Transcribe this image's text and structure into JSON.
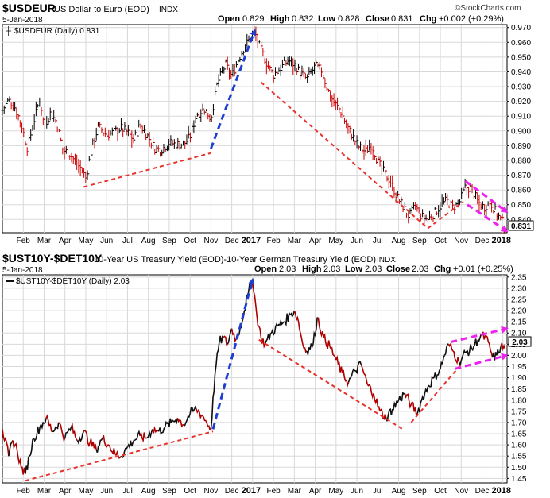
{
  "brand": "©StockCharts.com",
  "colors": {
    "price": "#000000",
    "price_down": "#cc0000",
    "line_dark": "#111111",
    "line_red": "#b00000",
    "trend_red": "#e8322b",
    "trend_blue": "#1f3fd0",
    "trend_magenta": "#ee22ee",
    "grid": "#d8d8d8"
  },
  "panels": [
    {
      "symbol": "$USDEUR",
      "description": "US Dollar to Euro (EOD)",
      "exchange": "INDX",
      "date": "5-Jan-2018",
      "ohlc": {
        "open_label": "Open",
        "open": "0.829",
        "high_label": "High",
        "high": "0.832",
        "low_label": "Low",
        "low": "0.828",
        "close_label": "Close",
        "close": "0.831",
        "chg_label": "Chg",
        "chg": "+0.002 (+0.29%)"
      },
      "legend": "$USDEUR (Daily) 0.831",
      "last_value_label": "0.831"
    },
    {
      "symbol": "$UST10Y-$DET10Y",
      "description": "10-Year US Treasury Yield (EOD)-10-Year German Treasury Yield (EOD)",
      "exchange": "INDX",
      "date": "5-Jan-2018",
      "ohlc": {
        "open_label": "Open",
        "open": "2.03",
        "high_label": "High",
        "high": "2.03",
        "low_label": "Low",
        "low": "2.03",
        "close_label": "Close",
        "close": "2.03",
        "chg_label": "Chg",
        "chg": "+0.01 (+0.25%)"
      },
      "legend": "$UST10Y-$DET10Y (Daily) 2.03",
      "last_value_label": "2.03"
    }
  ],
  "chart_data": [
    {
      "type": "bar",
      "title": "$USDEUR US Dollar to Euro (EOD) INDX",
      "x_ticks": [
        {
          "label": "Feb",
          "t": 1
        },
        {
          "label": "Mar",
          "t": 2
        },
        {
          "label": "Apr",
          "t": 3
        },
        {
          "label": "May",
          "t": 4
        },
        {
          "label": "Jun",
          "t": 5
        },
        {
          "label": "Jul",
          "t": 6
        },
        {
          "label": "Aug",
          "t": 7
        },
        {
          "label": "Sep",
          "t": 8
        },
        {
          "label": "Oct",
          "t": 9
        },
        {
          "label": "Nov",
          "t": 10
        },
        {
          "label": "Dec",
          "t": 11
        },
        {
          "label": "2017",
          "t": 12
        },
        {
          "label": "Feb",
          "t": 13
        },
        {
          "label": "Mar",
          "t": 14
        },
        {
          "label": "Apr",
          "t": 15
        },
        {
          "label": "May",
          "t": 16
        },
        {
          "label": "Jun",
          "t": 17
        },
        {
          "label": "Jul",
          "t": 18
        },
        {
          "label": "Aug",
          "t": 19
        },
        {
          "label": "Sep",
          "t": 20
        },
        {
          "label": "Oct",
          "t": 21
        },
        {
          "label": "Nov",
          "t": 22
        },
        {
          "label": "Dec",
          "t": 23
        },
        {
          "label": "2018",
          "t": 24
        }
      ],
      "y_ticks": [
        0.84,
        0.85,
        0.86,
        0.87,
        0.88,
        0.89,
        0.9,
        0.91,
        0.92,
        0.93,
        0.94,
        0.95,
        0.96,
        0.97
      ],
      "y_tick_labels": [
        "0.840",
        "0.850",
        "0.860",
        "0.870",
        "0.880",
        "0.890",
        "0.900",
        "0.910",
        "0.920",
        "0.930",
        "0.940",
        "0.950",
        "0.960",
        "0.970"
      ],
      "ylim": [
        0.831,
        0.972
      ],
      "xlim": [
        0,
        24.2
      ],
      "grid": true,
      "series_path": [
        [
          0.0,
          0.914
        ],
        [
          0.3,
          0.921
        ],
        [
          0.6,
          0.916
        ],
        [
          0.9,
          0.905
        ],
        [
          1.2,
          0.888
        ],
        [
          1.5,
          0.906
        ],
        [
          1.8,
          0.922
        ],
        [
          2.0,
          0.903
        ],
        [
          2.3,
          0.912
        ],
        [
          2.6,
          0.906
        ],
        [
          2.9,
          0.887
        ],
        [
          3.2,
          0.885
        ],
        [
          3.5,
          0.879
        ],
        [
          3.8,
          0.874
        ],
        [
          4.0,
          0.868
        ],
        [
          4.3,
          0.889
        ],
        [
          4.6,
          0.903
        ],
        [
          5.0,
          0.897
        ],
        [
          5.3,
          0.899
        ],
        [
          5.7,
          0.902
        ],
        [
          6.0,
          0.899
        ],
        [
          6.3,
          0.894
        ],
        [
          6.6,
          0.904
        ],
        [
          7.0,
          0.896
        ],
        [
          7.3,
          0.888
        ],
        [
          7.6,
          0.887
        ],
        [
          8.0,
          0.892
        ],
        [
          8.3,
          0.891
        ],
        [
          8.7,
          0.891
        ],
        [
          9.0,
          0.896
        ],
        [
          9.3,
          0.911
        ],
        [
          9.7,
          0.915
        ],
        [
          10.0,
          0.908
        ],
        [
          10.3,
          0.932
        ],
        [
          10.7,
          0.945
        ],
        [
          11.0,
          0.937
        ],
        [
          11.3,
          0.948
        ],
        [
          11.6,
          0.957
        ],
        [
          11.9,
          0.963
        ],
        [
          12.1,
          0.967
        ],
        [
          12.4,
          0.955
        ],
        [
          12.7,
          0.945
        ],
        [
          13.0,
          0.938
        ],
        [
          13.3,
          0.942
        ],
        [
          13.7,
          0.948
        ],
        [
          14.0,
          0.945
        ],
        [
          14.3,
          0.939
        ],
        [
          14.6,
          0.935
        ],
        [
          15.0,
          0.944
        ],
        [
          15.3,
          0.941
        ],
        [
          15.6,
          0.928
        ],
        [
          15.9,
          0.919
        ],
        [
          16.2,
          0.914
        ],
        [
          16.5,
          0.904
        ],
        [
          16.8,
          0.896
        ],
        [
          17.1,
          0.889
        ],
        [
          17.4,
          0.886
        ],
        [
          17.7,
          0.891
        ],
        [
          18.0,
          0.879
        ],
        [
          18.3,
          0.872
        ],
        [
          18.6,
          0.866
        ],
        [
          18.9,
          0.856
        ],
        [
          19.2,
          0.849
        ],
        [
          19.5,
          0.842
        ],
        [
          19.8,
          0.849
        ],
        [
          20.1,
          0.842
        ],
        [
          20.4,
          0.84
        ],
        [
          20.7,
          0.844
        ],
        [
          21.0,
          0.849
        ],
        [
          21.3,
          0.853
        ],
        [
          21.6,
          0.848
        ],
        [
          21.9,
          0.851
        ],
        [
          22.2,
          0.862
        ],
        [
          22.5,
          0.861
        ],
        [
          22.8,
          0.852
        ],
        [
          23.1,
          0.848
        ],
        [
          23.4,
          0.852
        ],
        [
          23.7,
          0.844
        ],
        [
          24.0,
          0.838
        ],
        [
          24.1,
          0.831
        ]
      ],
      "annotations": [
        {
          "type": "trendline",
          "color": "red",
          "from": [
            3.9,
            0.862
          ],
          "to": [
            10.0,
            0.885
          ]
        },
        {
          "type": "trendline",
          "color": "blue",
          "from": [
            10.0,
            0.888
          ],
          "to": [
            12.1,
            0.968
          ],
          "arrow": true
        },
        {
          "type": "trendline",
          "color": "red",
          "from": [
            12.4,
            0.933
          ],
          "to": [
            20.4,
            0.834
          ]
        },
        {
          "type": "trendline",
          "color": "red",
          "from": [
            20.4,
            0.834
          ],
          "to": [
            22.1,
            0.852
          ]
        },
        {
          "type": "trendline",
          "color": "magenta",
          "from": [
            22.2,
            0.866
          ],
          "to": [
            24.2,
            0.845
          ],
          "arrow": true
        },
        {
          "type": "trendline",
          "color": "magenta",
          "from": [
            22.3,
            0.85
          ],
          "to": [
            24.2,
            0.832
          ],
          "arrow": true
        }
      ],
      "last_value": 0.831
    },
    {
      "type": "line",
      "title": "$UST10Y-$DET10Y 10-Year US Treasury Yield (EOD)-10-Year German Treasury Yield (EOD) INDX",
      "x_ticks": [
        {
          "label": "Feb",
          "t": 1
        },
        {
          "label": "Mar",
          "t": 2
        },
        {
          "label": "Apr",
          "t": 3
        },
        {
          "label": "May",
          "t": 4
        },
        {
          "label": "Jun",
          "t": 5
        },
        {
          "label": "Jul",
          "t": 6
        },
        {
          "label": "Aug",
          "t": 7
        },
        {
          "label": "Sep",
          "t": 8
        },
        {
          "label": "Oct",
          "t": 9
        },
        {
          "label": "Nov",
          "t": 10
        },
        {
          "label": "Dec",
          "t": 11
        },
        {
          "label": "2017",
          "t": 12
        },
        {
          "label": "Feb",
          "t": 13
        },
        {
          "label": "Mar",
          "t": 14
        },
        {
          "label": "Apr",
          "t": 15
        },
        {
          "label": "May",
          "t": 16
        },
        {
          "label": "Jun",
          "t": 17
        },
        {
          "label": "Jul",
          "t": 18
        },
        {
          "label": "Aug",
          "t": 19
        },
        {
          "label": "Sep",
          "t": 20
        },
        {
          "label": "Oct",
          "t": 21
        },
        {
          "label": "Nov",
          "t": 22
        },
        {
          "label": "Dec",
          "t": 23
        },
        {
          "label": "2018",
          "t": 24
        }
      ],
      "y_ticks": [
        1.45,
        1.5,
        1.55,
        1.6,
        1.65,
        1.7,
        1.75,
        1.8,
        1.85,
        1.9,
        1.95,
        2.0,
        2.05,
        2.1,
        2.15,
        2.2,
        2.25,
        2.3,
        2.35
      ],
      "y_tick_labels": [
        "1.45",
        "1.50",
        "1.55",
        "1.60",
        "1.65",
        "1.70",
        "1.75",
        "1.80",
        "1.85",
        "1.90",
        "1.95",
        "2.00",
        "2.05",
        "2.10",
        "2.15",
        "2.20",
        "2.25",
        "2.30",
        "2.35"
      ],
      "ylim": [
        1.43,
        2.36
      ],
      "xlim": [
        0,
        24.2
      ],
      "grid": true,
      "series": [
        {
          "name": "$UST10Y-$DET10Y",
          "points": [
            [
              0.0,
              1.67
            ],
            [
              0.3,
              1.55
            ],
            [
              0.5,
              1.62
            ],
            [
              0.7,
              1.58
            ],
            [
              0.9,
              1.5
            ],
            [
              1.1,
              1.47
            ],
            [
              1.3,
              1.55
            ],
            [
              1.5,
              1.63
            ],
            [
              1.8,
              1.68
            ],
            [
              2.1,
              1.72
            ],
            [
              2.4,
              1.66
            ],
            [
              2.7,
              1.7
            ],
            [
              3.0,
              1.63
            ],
            [
              3.3,
              1.68
            ],
            [
              3.6,
              1.62
            ],
            [
              3.9,
              1.66
            ],
            [
              4.2,
              1.61
            ],
            [
              4.5,
              1.58
            ],
            [
              4.8,
              1.63
            ],
            [
              5.1,
              1.6
            ],
            [
              5.4,
              1.56
            ],
            [
              5.7,
              1.55
            ],
            [
              6.0,
              1.59
            ],
            [
              6.3,
              1.62
            ],
            [
              6.6,
              1.64
            ],
            [
              6.9,
              1.63
            ],
            [
              7.2,
              1.67
            ],
            [
              7.5,
              1.66
            ],
            [
              7.8,
              1.68
            ],
            [
              8.1,
              1.7
            ],
            [
              8.4,
              1.72
            ],
            [
              8.7,
              1.69
            ],
            [
              9.0,
              1.74
            ],
            [
              9.3,
              1.76
            ],
            [
              9.6,
              1.73
            ],
            [
              9.8,
              1.7
            ],
            [
              10.0,
              1.67
            ],
            [
              10.2,
              1.92
            ],
            [
              10.4,
              2.06
            ],
            [
              10.6,
              2.08
            ],
            [
              10.8,
              2.05
            ],
            [
              11.0,
              2.12
            ],
            [
              11.2,
              2.07
            ],
            [
              11.4,
              2.12
            ],
            [
              11.6,
              2.2
            ],
            [
              11.8,
              2.28
            ],
            [
              12.0,
              2.34
            ],
            [
              12.2,
              2.18
            ],
            [
              12.4,
              2.08
            ],
            [
              12.6,
              2.05
            ],
            [
              12.9,
              2.1
            ],
            [
              13.2,
              2.13
            ],
            [
              13.5,
              2.15
            ],
            [
              13.8,
              2.18
            ],
            [
              14.0,
              2.2
            ],
            [
              14.2,
              2.15
            ],
            [
              14.4,
              2.05
            ],
            [
              14.6,
              2.02
            ],
            [
              14.9,
              2.05
            ],
            [
              15.1,
              2.17
            ],
            [
              15.4,
              2.08
            ],
            [
              15.7,
              2.04
            ],
            [
              16.0,
              1.98
            ],
            [
              16.3,
              1.92
            ],
            [
              16.6,
              1.88
            ],
            [
              16.9,
              1.93
            ],
            [
              17.2,
              1.96
            ],
            [
              17.5,
              1.87
            ],
            [
              17.8,
              1.83
            ],
            [
              18.1,
              1.75
            ],
            [
              18.4,
              1.72
            ],
            [
              18.7,
              1.76
            ],
            [
              19.0,
              1.8
            ],
            [
              19.3,
              1.83
            ],
            [
              19.6,
              1.78
            ],
            [
              19.9,
              1.74
            ],
            [
              20.1,
              1.8
            ],
            [
              20.4,
              1.86
            ],
            [
              20.7,
              1.9
            ],
            [
              21.0,
              1.94
            ],
            [
              21.2,
              2.0
            ],
            [
              21.4,
              2.05
            ],
            [
              21.6,
              2.02
            ],
            [
              21.9,
              1.97
            ],
            [
              22.2,
              2.01
            ],
            [
              22.5,
              2.03
            ],
            [
              22.8,
              2.07
            ],
            [
              23.0,
              2.09
            ],
            [
              23.3,
              2.06
            ],
            [
              23.5,
              1.99
            ],
            [
              23.7,
              2.0
            ],
            [
              23.9,
              2.04
            ],
            [
              24.1,
              2.03
            ]
          ]
        }
      ],
      "annotations": [
        {
          "type": "trendline",
          "color": "red",
          "from": [
            1.1,
            1.44
          ],
          "to": [
            10.1,
            1.66
          ]
        },
        {
          "type": "trendline",
          "color": "blue",
          "from": [
            10.1,
            1.67
          ],
          "to": [
            12.0,
            2.34
          ],
          "arrow": true
        },
        {
          "type": "trendline",
          "color": "red",
          "from": [
            12.3,
            2.07
          ],
          "to": [
            19.2,
            1.67
          ]
        },
        {
          "type": "trendline",
          "color": "red",
          "from": [
            19.6,
            1.7
          ],
          "to": [
            22.0,
            1.96
          ]
        },
        {
          "type": "trendline",
          "color": "magenta",
          "from": [
            21.5,
            2.06
          ],
          "to": [
            24.2,
            2.12
          ],
          "arrow": true
        },
        {
          "type": "trendline",
          "color": "magenta",
          "from": [
            21.7,
            1.94
          ],
          "to": [
            24.2,
            2.0
          ],
          "arrow": true
        }
      ],
      "last_value": 2.03
    }
  ]
}
